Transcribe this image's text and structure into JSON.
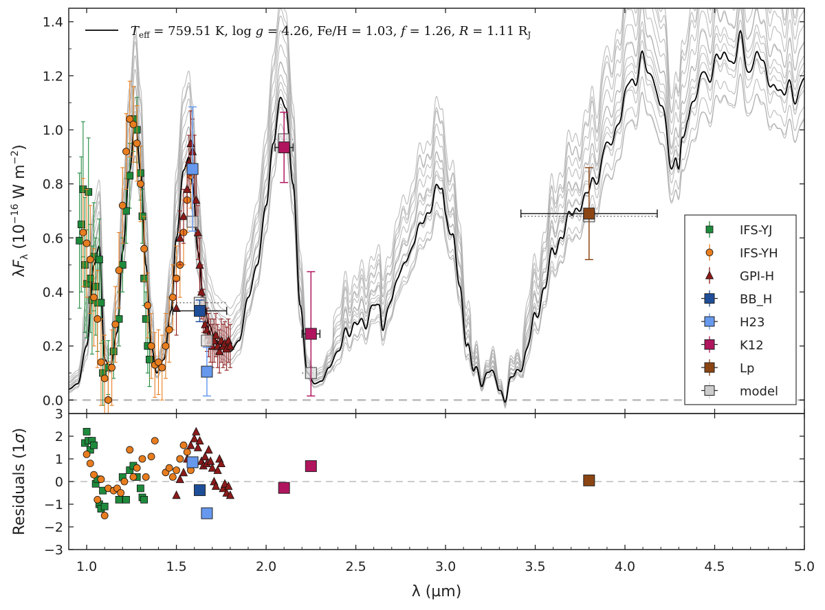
{
  "chart_data": [
    {
      "panel": "spectrum",
      "type": "scatter",
      "title": "T_eff = 759.51 K, log g = 4.26, Fe/H = 1.03, f = 1.26, R = 1.11 R_J",
      "title_parts": {
        "teff_sym": "T",
        "teff_sub": "eff",
        "teff_val": " = 759.51 K, ",
        "logg_pre": "log ",
        "logg_sym": "g",
        "logg_val": " = 4.26, Fe/H = 1.03, ",
        "f_sym": "f",
        "f_val": " = 1.26, ",
        "r_sym": "R",
        "r_val": " = 1.11 R",
        "r_sub": "J"
      },
      "ylabel": {
        "lambda": "λ",
        "F": "F",
        "sub": "λ",
        "unit_open": " (10",
        "exp": "−16",
        "unit_mid": " W m",
        "exp2": "−2",
        "close": ")"
      },
      "xlim": [
        0.9,
        5.0
      ],
      "ylim": [
        -0.05,
        1.45
      ],
      "yticks": [
        "0.0",
        "0.2",
        "0.4",
        "0.6",
        "0.8",
        "1.0",
        "1.2",
        "1.4"
      ],
      "ytick_values": [
        0.0,
        0.2,
        0.4,
        0.6,
        0.8,
        1.0,
        1.2,
        1.4
      ],
      "extra_ytick_label": "3",
      "zero_line": 0.0,
      "model_line_color": "#000000",
      "model_family_color": "#aaaaaa",
      "model_curve_keypoints": {
        "x": [
          0.9,
          0.95,
          1.0,
          1.04,
          1.07,
          1.1,
          1.13,
          1.17,
          1.2,
          1.24,
          1.27,
          1.3,
          1.33,
          1.36,
          1.39,
          1.43,
          1.47,
          1.5,
          1.54,
          1.57,
          1.59,
          1.62,
          1.65,
          1.68,
          1.72,
          1.76,
          1.8,
          1.85,
          1.9,
          1.95,
          2.0,
          2.04,
          2.08,
          2.11,
          2.15,
          2.19,
          2.23,
          2.27,
          2.31,
          2.35,
          2.4,
          2.45,
          2.5,
          2.55,
          2.6,
          2.63,
          2.65,
          2.7,
          2.75,
          2.8,
          2.85,
          2.9,
          2.95,
          2.98,
          3.0,
          3.04,
          3.08,
          3.12,
          3.16,
          3.2,
          3.24,
          3.28,
          3.3,
          3.33,
          3.36,
          3.4,
          3.45,
          3.5,
          3.55,
          3.6,
          3.65,
          3.7,
          3.75,
          3.8,
          3.85,
          3.9,
          3.95,
          4.0,
          4.05,
          4.1,
          4.15,
          4.2,
          4.25,
          4.28,
          4.3,
          4.32,
          4.35,
          4.4,
          4.45,
          4.5,
          4.55,
          4.6,
          4.65,
          4.7,
          4.75,
          4.8,
          4.85,
          4.9,
          4.95,
          5.0
        ],
        "y": [
          0.04,
          0.06,
          0.2,
          0.5,
          0.57,
          0.15,
          0.12,
          0.25,
          0.55,
          0.85,
          1.04,
          0.85,
          0.5,
          0.2,
          0.1,
          0.15,
          0.33,
          0.6,
          0.85,
          0.9,
          0.8,
          0.55,
          0.38,
          0.28,
          0.22,
          0.2,
          0.18,
          0.22,
          0.38,
          0.5,
          0.72,
          0.95,
          1.12,
          1.08,
          0.8,
          0.35,
          0.1,
          0.06,
          0.07,
          0.12,
          0.18,
          0.24,
          0.3,
          0.26,
          0.38,
          0.33,
          0.25,
          0.4,
          0.46,
          0.56,
          0.62,
          0.7,
          0.77,
          0.78,
          0.7,
          0.6,
          0.4,
          0.22,
          0.1,
          0.07,
          0.12,
          0.06,
          0.04,
          0.02,
          0.06,
          0.1,
          0.18,
          0.3,
          0.42,
          0.54,
          0.62,
          0.68,
          0.73,
          0.76,
          0.85,
          0.93,
          1.0,
          1.12,
          1.2,
          1.25,
          1.2,
          1.1,
          0.9,
          0.9,
          0.84,
          0.95,
          1.05,
          1.15,
          1.2,
          1.24,
          1.28,
          1.26,
          1.32,
          1.22,
          1.28,
          1.2,
          1.12,
          1.18,
          1.1,
          1.2
        ]
      },
      "series": [
        {
          "name": "IFS-YJ",
          "marker": "square",
          "color": "#1e8a3c",
          "x": [
            0.96,
            0.97,
            0.98,
            0.99,
            1.0,
            1.01,
            1.02,
            1.03,
            1.04,
            1.05,
            1.06,
            1.07,
            1.08,
            1.09,
            1.12,
            1.15,
            1.18,
            1.2,
            1.22,
            1.24,
            1.26,
            1.28,
            1.3,
            1.31,
            1.32,
            1.33,
            1.34,
            1.35
          ],
          "y": [
            0.59,
            0.65,
            0.78,
            0.5,
            0.43,
            0.77,
            0.45,
            0.37,
            0.53,
            0.42,
            0.36,
            0.52,
            0.36,
            0.1,
            0.12,
            0.18,
            0.3,
            0.5,
            0.7,
            0.83,
            1.04,
            1.0,
            0.84,
            0.68,
            0.45,
            0.3,
            0.2,
            0.15
          ],
          "err": [
            0.25,
            0.25,
            0.25,
            0.25,
            0.2,
            0.2,
            0.2,
            0.2,
            0.2,
            0.18,
            0.18,
            0.15,
            0.15,
            0.12,
            0.1,
            0.1,
            0.1,
            0.1,
            0.12,
            0.12,
            0.12,
            0.12,
            0.1,
            0.1,
            0.1,
            0.1,
            0.1,
            0.1
          ]
        },
        {
          "name": "IFS-YH",
          "marker": "circle",
          "color": "#e87d1f",
          "x": [
            0.98,
            1.0,
            1.02,
            1.04,
            1.06,
            1.08,
            1.1,
            1.12,
            1.14,
            1.16,
            1.18,
            1.2,
            1.22,
            1.24,
            1.26,
            1.28,
            1.3,
            1.32,
            1.34,
            1.36,
            1.38,
            1.4,
            1.42,
            1.44,
            1.46,
            1.48,
            1.5,
            1.52,
            1.54,
            1.56,
            1.58
          ],
          "y": [
            0.62,
            0.58,
            0.52,
            0.38,
            0.3,
            0.14,
            0.08,
            0.0,
            0.12,
            0.28,
            0.48,
            0.72,
            0.92,
            1.04,
            1.02,
            0.95,
            0.8,
            0.56,
            0.35,
            0.2,
            0.13,
            0.14,
            0.12,
            0.2,
            0.26,
            0.38,
            0.45,
            0.5,
            0.62,
            0.74,
            0.83
          ],
          "err": [
            0.2,
            0.2,
            0.2,
            0.18,
            0.18,
            0.16,
            0.16,
            0.14,
            0.14,
            0.14,
            0.14,
            0.14,
            0.14,
            0.14,
            0.14,
            0.14,
            0.14,
            0.12,
            0.12,
            0.12,
            0.12,
            0.12,
            0.12,
            0.12,
            0.12,
            0.12,
            0.12,
            0.12,
            0.12,
            0.12,
            0.12
          ]
        },
        {
          "name": "GPI-H",
          "marker": "triangle",
          "color": "#8b1a1a",
          "x": [
            1.5,
            1.52,
            1.54,
            1.56,
            1.57,
            1.58,
            1.59,
            1.6,
            1.61,
            1.62,
            1.63,
            1.64,
            1.65,
            1.66,
            1.67,
            1.68,
            1.69,
            1.7,
            1.71,
            1.72,
            1.73,
            1.74,
            1.75,
            1.76,
            1.77,
            1.78,
            1.79,
            1.8
          ],
          "y": [
            0.34,
            0.6,
            0.68,
            0.78,
            0.88,
            0.95,
            0.92,
            0.86,
            0.74,
            0.62,
            0.5,
            0.4,
            0.33,
            0.28,
            0.26,
            0.24,
            0.22,
            0.2,
            0.22,
            0.24,
            0.2,
            0.18,
            0.22,
            0.2,
            0.21,
            0.19,
            0.22,
            0.2
          ],
          "err": [
            0.1,
            0.1,
            0.1,
            0.1,
            0.1,
            0.12,
            0.12,
            0.12,
            0.1,
            0.1,
            0.1,
            0.1,
            0.08,
            0.08,
            0.08,
            0.08,
            0.08,
            0.08,
            0.08,
            0.08,
            0.08,
            0.08,
            0.08,
            0.08,
            0.08,
            0.08,
            0.08,
            0.08
          ]
        }
      ],
      "photometry": [
        {
          "name": "BB_H",
          "color": "#1f4e99",
          "x": 1.63,
          "y": 0.33,
          "xerr": 0.15,
          "yerr": 0.04
        },
        {
          "name": "H23",
          "color": "#6699ee",
          "x": 1.59,
          "y": 0.855,
          "xerr": 0.02,
          "yerr": 0.23
        },
        {
          "name": "H23",
          "color": "#6699ee",
          "x": 1.67,
          "y": 0.105,
          "xerr": 0.02,
          "yerr": 0.09
        },
        {
          "name": "K12",
          "color": "#b0155e",
          "x": 2.1,
          "y": 0.935,
          "xerr": 0.05,
          "yerr": 0.13
        },
        {
          "name": "K12",
          "color": "#b0155e",
          "x": 2.25,
          "y": 0.245,
          "xerr": 0.05,
          "yerr": 0.23
        },
        {
          "name": "Lp",
          "color": "#8b4513",
          "x": 3.8,
          "y": 0.69,
          "xerr": 0.38,
          "yerr": 0.17
        }
      ],
      "model_photometry": [
        {
          "x": 1.63,
          "y": 0.36,
          "xerr": 0.15
        },
        {
          "x": 1.59,
          "y": 0.66,
          "xerr": 0.02
        },
        {
          "x": 1.67,
          "y": 0.22,
          "xerr": 0.02
        },
        {
          "x": 2.1,
          "y": 0.965,
          "xerr": 0.05
        },
        {
          "x": 2.25,
          "y": 0.1,
          "xerr": 0.05
        },
        {
          "x": 3.8,
          "y": 0.68,
          "xerr": 0.38
        }
      ],
      "legend": {
        "placement": "right",
        "entries": [
          {
            "label": "IFS-YJ",
            "marker": "square",
            "color": "#1e8a3c"
          },
          {
            "label": "IFS-YH",
            "marker": "circle",
            "color": "#e87d1f"
          },
          {
            "label": "GPI-H",
            "marker": "triangle",
            "color": "#8b1a1a"
          },
          {
            "label": "BB_H",
            "marker": "bigsquare",
            "color": "#1f4e99"
          },
          {
            "label": "H23",
            "marker": "bigsquare",
            "color": "#6699ee"
          },
          {
            "label": "K12",
            "marker": "bigsquare",
            "color": "#b0155e"
          },
          {
            "label": "Lp",
            "marker": "bigsquare",
            "color": "#8b4513"
          },
          {
            "label": "model",
            "marker": "bigsquare",
            "color": "#cccccc"
          }
        ]
      }
    },
    {
      "panel": "residuals",
      "type": "scatter",
      "ylabel": "Residuals (1σ)",
      "ylabel_parts": {
        "text": "Residuals (1",
        "sigma": "σ",
        "close": ")"
      },
      "xlabel": "λ (µm)",
      "xlim": [
        0.9,
        5.0
      ],
      "ylim": [
        -3.0,
        3.0
      ],
      "xticks": [
        "1.0",
        "1.5",
        "2.0",
        "2.5",
        "3.0",
        "3.5",
        "4.0",
        "4.5",
        "5.0"
      ],
      "xtick_values": [
        1.0,
        1.5,
        2.0,
        2.5,
        3.0,
        3.5,
        4.0,
        4.5,
        5.0
      ],
      "yticks": [
        "−3",
        "−2",
        "−1",
        "0",
        "1",
        "2"
      ],
      "ytick_values": [
        -3,
        -2,
        -1,
        0,
        1,
        2
      ],
      "series": [
        {
          "name": "IFS-YJ",
          "marker": "square",
          "color": "#1e8a3c",
          "x": [
            0.99,
            1.0,
            1.01,
            1.02,
            1.03,
            1.04,
            1.05,
            1.06,
            1.07,
            1.08,
            1.09,
            1.1,
            1.18,
            1.2,
            1.22,
            1.24,
            1.26,
            1.28,
            1.3,
            1.31,
            1.32
          ],
          "y": [
            1.7,
            2.2,
            1.8,
            1.4,
            1.8,
            1.6,
            -0.1,
            0.1,
            -1.0,
            -1.2,
            -0.4,
            -1.1,
            -0.8,
            0.2,
            -0.8,
            0.5,
            0.7,
            0.2,
            -0.3,
            -0.7,
            -0.8
          ]
        },
        {
          "name": "IFS-YH",
          "marker": "circle",
          "color": "#e87d1f",
          "x": [
            1.0,
            1.02,
            1.04,
            1.06,
            1.08,
            1.1,
            1.12,
            1.15,
            1.17,
            1.19,
            1.21,
            1.24,
            1.26,
            1.28,
            1.31,
            1.33,
            1.36,
            1.38,
            1.44,
            1.46,
            1.48,
            1.5,
            1.52,
            1.54,
            1.56,
            1.58
          ],
          "y": [
            1.2,
            0.8,
            0.3,
            -0.8,
            0.1,
            -1.5,
            -0.3,
            -0.4,
            -0.3,
            -0.5,
            0.0,
            1.4,
            0.2,
            0.6,
            1.0,
            0.2,
            1.1,
            1.8,
            0.4,
            0.6,
            0.2,
            0.5,
            1.0,
            1.6,
            1.3,
            0.5
          ]
        },
        {
          "name": "GPI-H",
          "marker": "triangle",
          "color": "#8b1a1a",
          "x": [
            1.5,
            1.52,
            1.54,
            1.56,
            1.58,
            1.6,
            1.61,
            1.62,
            1.63,
            1.64,
            1.65,
            1.66,
            1.67,
            1.68,
            1.69,
            1.7,
            1.71,
            1.72,
            1.73,
            1.74,
            1.75,
            1.76,
            1.77,
            1.78,
            1.79,
            1.8
          ],
          "y": [
            -0.6,
            0.1,
            0.4,
            1.0,
            1.6,
            1.9,
            2.2,
            1.5,
            1.8,
            0.9,
            0.7,
            1.1,
            0.8,
            1.4,
            0.9,
            0.6,
            0.0,
            -0.2,
            0.5,
            1.0,
            0.8,
            -0.3,
            -0.1,
            -0.5,
            -0.2,
            -0.6
          ]
        }
      ],
      "photometry": [
        {
          "name": "H23",
          "color": "#6699ee",
          "x": 1.59,
          "y": 0.85
        },
        {
          "name": "BB_H",
          "color": "#1f4e99",
          "x": 1.63,
          "y": -0.38
        },
        {
          "name": "H23",
          "color": "#6699ee",
          "x": 1.67,
          "y": -1.4
        },
        {
          "name": "K12",
          "color": "#b0155e",
          "x": 2.1,
          "y": -0.28
        },
        {
          "name": "K12",
          "color": "#b0155e",
          "x": 2.25,
          "y": 0.68
        },
        {
          "name": "Lp",
          "color": "#8b4513",
          "x": 3.8,
          "y": 0.05
        }
      ]
    }
  ]
}
